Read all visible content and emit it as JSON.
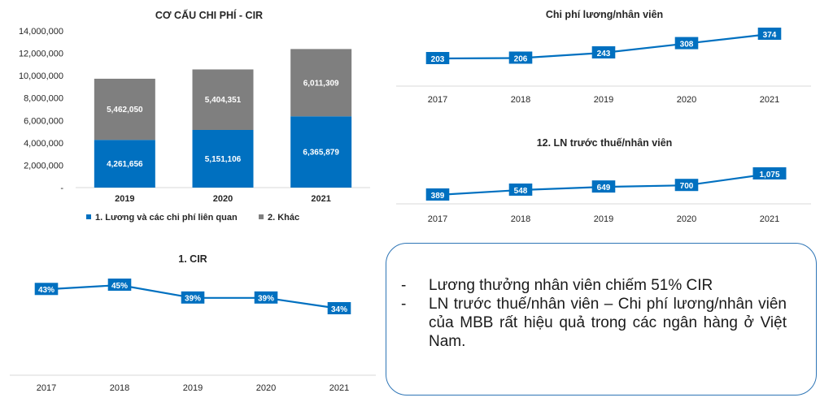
{
  "charts": [
    {
      "type": "bar",
      "stacked": true,
      "title": "CƠ CẤU CHI PHÍ - CIR",
      "categories": [
        "2019",
        "2020",
        "2021"
      ],
      "series": [
        {
          "name": "1. Lương và các chi phí liên quan",
          "values": [
            4261656,
            5151106,
            6365879
          ],
          "labels": [
            "4,261,656",
            "5,151,106",
            "6,365,879"
          ],
          "color": "#0070c0"
        },
        {
          "name": "2. Khác",
          "values": [
            5462050,
            5404351,
            6011309
          ],
          "labels": [
            "5,462,050",
            "5,404,351",
            "6,011,309"
          ],
          "color": "#7f7f7f"
        }
      ],
      "ylim": [
        0,
        14000000
      ],
      "yticks": [
        14000000,
        12000000,
        10000000,
        8000000,
        6000000,
        4000000,
        2000000,
        0
      ],
      "ytick_labels": [
        "14,000,000",
        "12,000,000",
        "10,000,000",
        "8,000,000",
        "6,000,000",
        "4,000,000",
        "2,000,000",
        "-"
      ],
      "legend": "bottom",
      "grid": false
    },
    {
      "type": "line",
      "title": "Chi phí lương/nhân viên",
      "x": [
        "2017",
        "2018",
        "2019",
        "2020",
        "2021"
      ],
      "values": [
        203,
        206,
        243,
        308,
        374
      ],
      "labels": [
        "203",
        "206",
        "243",
        "308",
        "374"
      ],
      "color": "#0070c0",
      "grid": false
    },
    {
      "type": "line",
      "title": "12. LN trước thuế/nhân viên",
      "x": [
        "2017",
        "2018",
        "2019",
        "2020",
        "2021"
      ],
      "values": [
        389,
        548,
        649,
        700,
        1075
      ],
      "labels": [
        "389",
        "548",
        "649",
        "700",
        "1,075"
      ],
      "color": "#0070c0",
      "grid": false
    },
    {
      "type": "line",
      "title": "1. CIR",
      "x": [
        "2017",
        "2018",
        "2019",
        "2020",
        "2021"
      ],
      "values": [
        43,
        45,
        39,
        39,
        34
      ],
      "labels": [
        "43%",
        "45%",
        "39%",
        "39%",
        "34%"
      ],
      "unit": "%",
      "color": "#0070c0",
      "grid": false
    }
  ],
  "note": {
    "items": [
      {
        "dash": "-",
        "text": "Lương thưởng nhân viên chiếm 51% CIR"
      },
      {
        "dash": "-",
        "text": "LN trước thuế/nhân viên – Chi phí lương/nhân viên của MBB rất hiệu quả trong các ngân hàng ở Việt Nam."
      }
    ]
  }
}
